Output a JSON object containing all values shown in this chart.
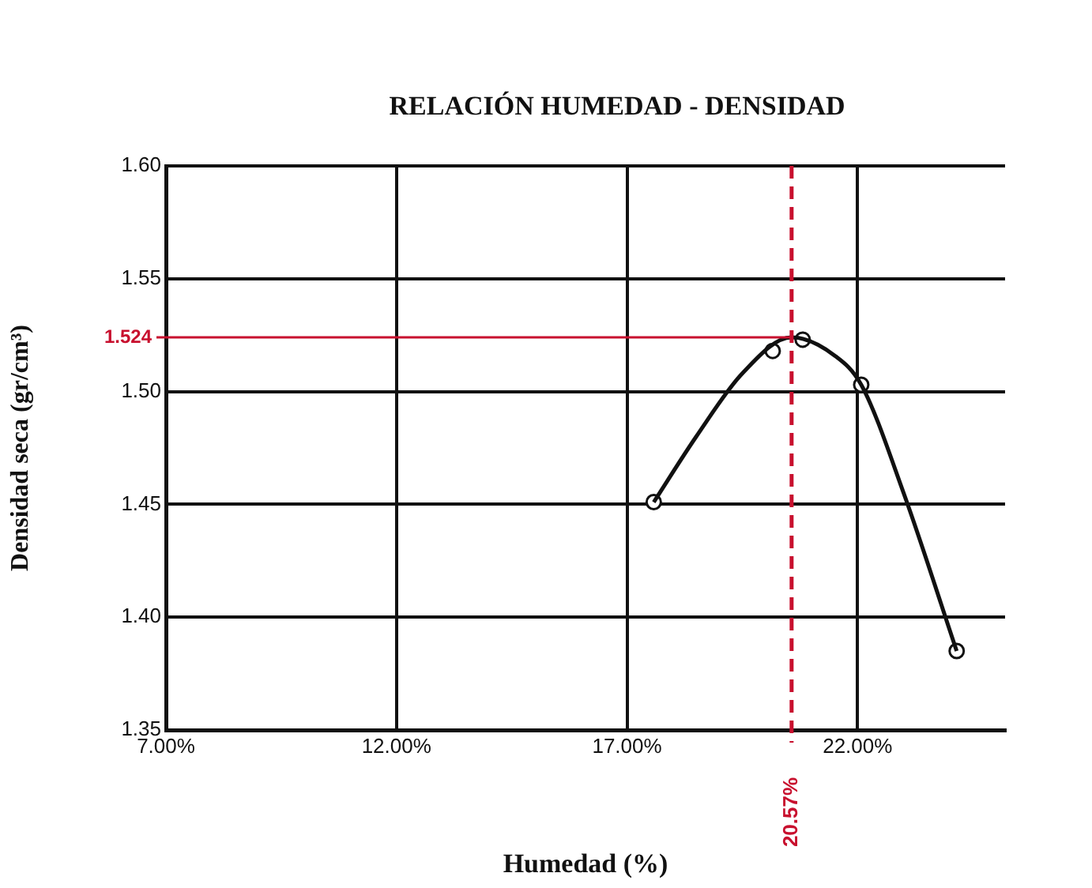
{
  "chart_data": {
    "type": "line",
    "title": "RELACIÓN HUMEDAD - DENSIDAD",
    "xlabel": "Humedad (%)",
    "ylabel": "Densidad seca (gr/cm³)",
    "series": [
      {
        "type": "line",
        "x": [
          17.58,
          18.5,
          19.5,
          20.57,
          21.5,
          22.08,
          23,
          24.15
        ],
        "values": [
          1.451,
          1.48,
          1.508,
          1.524,
          1.516,
          1.503,
          1.455,
          1.385
        ],
        "color": "#111111",
        "marker": "none"
      },
      {
        "type": "scatter",
        "x": [
          17.58,
          20.16,
          20.81,
          22.08,
          24.15
        ],
        "values": [
          1.451,
          1.518,
          1.523,
          1.503,
          1.385
        ],
        "color": "#111111",
        "marker": "circle"
      }
    ],
    "xlim": [
      7,
      25.2
    ],
    "xticks": [
      {
        "value": 7,
        "label": "7.00%"
      },
      {
        "value": 12,
        "label": "12.00%"
      },
      {
        "value": 17,
        "label": "17.00%"
      },
      {
        "value": 22,
        "label": "22.00%"
      }
    ],
    "ylim": [
      1.35,
      1.6
    ],
    "yticks": [
      {
        "value": 1.35,
        "label": "1.35"
      },
      {
        "value": 1.4,
        "label": "1.40"
      },
      {
        "value": 1.45,
        "label": "1.45"
      },
      {
        "value": 1.5,
        "label": "1.50"
      },
      {
        "value": 1.55,
        "label": "1.55"
      },
      {
        "value": 1.6,
        "label": "1.60"
      }
    ],
    "grid": true,
    "legend": false,
    "ref_lines": [
      {
        "axis": "x",
        "value": 20.57,
        "label": "20.57%",
        "color": "#c8102e",
        "line_style": "dashed"
      },
      {
        "axis": "y",
        "value": 1.524,
        "label": "1.524",
        "color": "#c8102e",
        "line_style": "solid"
      }
    ]
  }
}
